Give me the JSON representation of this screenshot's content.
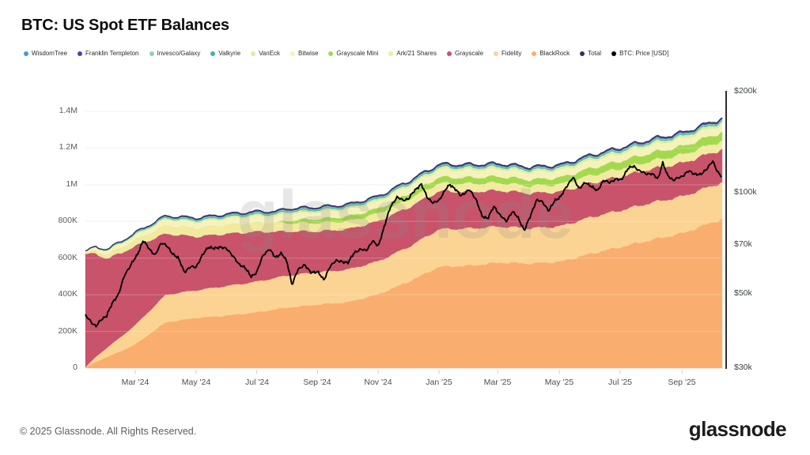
{
  "header": {
    "title": "BTC: US Spot ETF Balances"
  },
  "legend": {
    "items": [
      {
        "label": "WisdomTree",
        "color": "#4a9bc9"
      },
      {
        "label": "Franklin Templeton",
        "color": "#45479e"
      },
      {
        "label": "Invesco/Galaxy",
        "color": "#8fd0bd"
      },
      {
        "label": "Valkyrie",
        "color": "#3db5ac"
      },
      {
        "label": "VanEck",
        "color": "#dceda4"
      },
      {
        "label": "Bitwise",
        "color": "#f6f2bb"
      },
      {
        "label": "Grayscale Mini",
        "color": "#a4d94f"
      },
      {
        "label": "Ark/21 Shares",
        "color": "#f1ea9f"
      },
      {
        "label": "Grayscale",
        "color": "#c8536b"
      },
      {
        "label": "Fidelity",
        "color": "#fbd494"
      },
      {
        "label": "BlackRock",
        "color": "#f9ae6f"
      },
      {
        "label": "Total",
        "color": "#31335e"
      },
      {
        "label": "BTC: Price [USD]",
        "color": "#000000"
      }
    ]
  },
  "watermark": {
    "text": "glassnode"
  },
  "footer": {
    "copyright": "© 2025 Glassnode. All Rights Reserved.",
    "logo": "glassnode"
  },
  "chart_data": {
    "type": "area",
    "stacked": true,
    "title": "BTC: US Spot ETF Balances",
    "x_unit": "months since 2024-01-11",
    "t_max": 20.96,
    "left_axis": {
      "unit": "BTC (thousands)",
      "range_k": [
        0,
        1510
      ],
      "ticks": [
        {
          "v": 1400,
          "label": "1.4M"
        },
        {
          "v": 1200,
          "label": "1.2M"
        },
        {
          "v": 1000,
          "label": "1M"
        },
        {
          "v": 800,
          "label": "800K"
        },
        {
          "v": 600,
          "label": "600K"
        },
        {
          "v": 400,
          "label": "400K"
        },
        {
          "v": 200,
          "label": "200K"
        },
        {
          "v": 0,
          "label": "0"
        }
      ]
    },
    "right_axis": {
      "unit": "USD",
      "scale": "log",
      "ticks": [
        {
          "v": 200,
          "label": "$200k"
        },
        {
          "v": 100,
          "label": "$100k"
        },
        {
          "v": 70,
          "label": "$70k"
        },
        {
          "v": 50,
          "label": "$50k"
        },
        {
          "v": 30,
          "label": "$30k"
        }
      ]
    },
    "x_axis": {
      "ticks": [
        {
          "t": 1.64,
          "label": "Mar '24"
        },
        {
          "t": 3.64,
          "label": "May '24"
        },
        {
          "t": 5.64,
          "label": "Jul '24"
        },
        {
          "t": 7.64,
          "label": "Sep '24"
        },
        {
          "t": 9.64,
          "label": "Nov '24"
        },
        {
          "t": 11.64,
          "label": "Jan '25"
        },
        {
          "t": 13.57,
          "label": "Mar '25"
        },
        {
          "t": 15.6,
          "label": "May '25"
        },
        {
          "t": 17.6,
          "label": "Jul '25"
        },
        {
          "t": 19.64,
          "label": "Sep '25"
        }
      ]
    },
    "t_anchors": [
      0,
      0.35,
      0.7,
      1.2,
      1.64,
      2.64,
      3.64,
      4.64,
      5.64,
      6.3,
      6.64,
      7.64,
      8.64,
      9.64,
      10.64,
      11.64,
      12.64,
      13.64,
      14.64,
      15.64,
      16.64,
      17.64,
      18.64,
      19.64,
      20.96
    ],
    "series_order": "bottom to top, values in thousands of BTC",
    "series": [
      {
        "name": "BlackRock",
        "color": "#f9ae6f",
        "values": [
          3,
          35,
          60,
          95,
          130,
          250,
          274,
          287,
          305,
          322,
          330,
          347,
          360,
          403,
          472,
          553,
          559,
          576,
          571,
          581,
          625,
          662,
          700,
          735,
          815
        ]
      },
      {
        "name": "Fidelity",
        "color": "#fbd494",
        "values": [
          2,
          28,
          50,
          80,
          105,
          150,
          151,
          161,
          167,
          172,
          175,
          176,
          178,
          180,
          190,
          205,
          203,
          197,
          192,
          193,
          199,
          200,
          203,
          201,
          199
        ]
      },
      {
        "name": "Grayscale",
        "color": "#c8536b",
        "values": [
          619,
          560,
          487,
          455,
          430,
          333,
          292,
          285,
          272,
          250,
          241,
          223,
          220,
          218,
          215,
          207,
          200,
          196,
          191,
          188,
          185,
          184,
          183,
          182,
          180
        ]
      },
      {
        "name": "Ark/21 Shares",
        "color": "#f1ea9f",
        "values": [
          5,
          16,
          22,
          28,
          33,
          44,
          45,
          47,
          48,
          47,
          46,
          46,
          44,
          43,
          45,
          44,
          44,
          42,
          40,
          41,
          43,
          44,
          45,
          46,
          47
        ]
      },
      {
        "name": "Grayscale Mini",
        "color": "#a4d94f",
        "values": [
          0,
          0,
          0,
          0,
          0,
          0,
          0,
          0,
          0,
          0,
          14,
          22,
          25,
          27,
          30,
          32,
          33,
          34,
          34,
          36,
          39,
          41,
          44,
          45,
          47
        ]
      },
      {
        "name": "Bitwise",
        "color": "#f6f2bb",
        "values": [
          7,
          16,
          20,
          23,
          25,
          32,
          32,
          34,
          36,
          37,
          37,
          37,
          38,
          38,
          40,
          41,
          41,
          40,
          39,
          39,
          40,
          40,
          41,
          41,
          42
        ]
      },
      {
        "name": "VanEck",
        "color": "#dceda4",
        "values": [
          1,
          2,
          3,
          5,
          6,
          9,
          10,
          10,
          10,
          11,
          11,
          11,
          11,
          12,
          12,
          13,
          13,
          13,
          13,
          13,
          14,
          14,
          14,
          14,
          14
        ]
      },
      {
        "name": "Valkyrie",
        "color": "#3db5ac",
        "values": [
          1,
          1.5,
          2,
          2.5,
          3,
          4,
          4.5,
          5,
          5,
          5,
          5,
          5,
          5,
          5,
          5,
          5,
          5,
          5,
          5,
          5,
          5,
          5,
          5,
          5,
          5
        ]
      },
      {
        "name": "Invesco/Galaxy",
        "color": "#8fd0bd",
        "values": [
          1,
          1.5,
          2,
          2.5,
          3,
          4,
          5,
          5,
          5,
          5,
          5,
          5,
          5,
          5,
          5,
          5,
          5,
          5,
          5,
          5,
          5,
          6,
          6,
          6,
          6
        ]
      },
      {
        "name": "Franklin Templeton",
        "color": "#45479e",
        "values": [
          0.3,
          0.8,
          1,
          1.5,
          2,
          3,
          3.5,
          4,
          4,
          4,
          4,
          4,
          4,
          4,
          4,
          5,
          5,
          5,
          5,
          5,
          5,
          5,
          5,
          5,
          5
        ]
      },
      {
        "name": "WisdomTree",
        "color": "#4a9bc9",
        "values": [
          0.1,
          0.2,
          0.3,
          0.7,
          1,
          1.5,
          2,
          2,
          2,
          2,
          2,
          2,
          2,
          2,
          2,
          2,
          2,
          2,
          2,
          2,
          2,
          2,
          3,
          3,
          3
        ]
      }
    ],
    "total_line": {
      "name": "Total",
      "color": "#31335e"
    },
    "price_line": {
      "name": "BTC: Price [USD]",
      "color": "#000000",
      "axis": "right-log",
      "points_t_usdk": [
        [
          0,
          43
        ],
        [
          0.2,
          41
        ],
        [
          0.35,
          40
        ],
        [
          0.55,
          42
        ],
        [
          0.7,
          43
        ],
        [
          0.9,
          47
        ],
        [
          1.1,
          50
        ],
        [
          1.3,
          57
        ],
        [
          1.5,
          61
        ],
        [
          1.7,
          65
        ],
        [
          1.9,
          72
        ],
        [
          2.1,
          68
        ],
        [
          2.3,
          65
        ],
        [
          2.5,
          71
        ],
        [
          2.64,
          70
        ],
        [
          2.85,
          66
        ],
        [
          3.05,
          64
        ],
        [
          3.25,
          58
        ],
        [
          3.45,
          60
        ],
        [
          3.64,
          60
        ],
        [
          3.85,
          65
        ],
        [
          4.05,
          69
        ],
        [
          4.25,
          68
        ],
        [
          4.45,
          69
        ],
        [
          4.64,
          68
        ],
        [
          4.85,
          65
        ],
        [
          5.05,
          61
        ],
        [
          5.25,
          60
        ],
        [
          5.45,
          56
        ],
        [
          5.64,
          58
        ],
        [
          5.85,
          65
        ],
        [
          6.05,
          68
        ],
        [
          6.25,
          64
        ],
        [
          6.45,
          66
        ],
        [
          6.64,
          62
        ],
        [
          6.8,
          53
        ],
        [
          7.0,
          59
        ],
        [
          7.2,
          61
        ],
        [
          7.4,
          58
        ],
        [
          7.64,
          58
        ],
        [
          7.85,
          55
        ],
        [
          8.05,
          60
        ],
        [
          8.25,
          63
        ],
        [
          8.45,
          62
        ],
        [
          8.64,
          62
        ],
        [
          8.85,
          66
        ],
        [
          9.05,
          68
        ],
        [
          9.25,
          67
        ],
        [
          9.45,
          72
        ],
        [
          9.64,
          69
        ],
        [
          9.85,
          80
        ],
        [
          10.05,
          91
        ],
        [
          10.25,
          97
        ],
        [
          10.45,
          95
        ],
        [
          10.64,
          96
        ],
        [
          10.85,
          102
        ],
        [
          11.05,
          106
        ],
        [
          11.25,
          97
        ],
        [
          11.45,
          93
        ],
        [
          11.64,
          95
        ],
        [
          11.85,
          102
        ],
        [
          12.0,
          106
        ],
        [
          12.15,
          103
        ],
        [
          12.35,
          98
        ],
        [
          12.64,
          102
        ],
        [
          12.85,
          96
        ],
        [
          13.05,
          85
        ],
        [
          13.25,
          84
        ],
        [
          13.45,
          91
        ],
        [
          13.64,
          86
        ],
        [
          13.85,
          82
        ],
        [
          14.05,
          88
        ],
        [
          14.25,
          84
        ],
        [
          14.45,
          77
        ],
        [
          14.64,
          85
        ],
        [
          14.85,
          95
        ],
        [
          15.05,
          94
        ],
        [
          15.25,
          88
        ],
        [
          15.45,
          95
        ],
        [
          15.64,
          97
        ],
        [
          15.85,
          105
        ],
        [
          16.05,
          111
        ],
        [
          16.25,
          103
        ],
        [
          16.45,
          107
        ],
        [
          16.64,
          105
        ],
        [
          16.85,
          101
        ],
        [
          17.05,
          109
        ],
        [
          17.25,
          107
        ],
        [
          17.45,
          110
        ],
        [
          17.64,
          109
        ],
        [
          17.85,
          118
        ],
        [
          18.05,
          120
        ],
        [
          18.25,
          116
        ],
        [
          18.45,
          114
        ],
        [
          18.64,
          114
        ],
        [
          18.85,
          110
        ],
        [
          19.0,
          123
        ],
        [
          19.15,
          113
        ],
        [
          19.35,
          109
        ],
        [
          19.64,
          112
        ],
        [
          19.85,
          116
        ],
        [
          20.05,
          114
        ],
        [
          20.25,
          113
        ],
        [
          20.45,
          118
        ],
        [
          20.65,
          124
        ],
        [
          20.8,
          116
        ],
        [
          20.96,
          111
        ]
      ]
    }
  }
}
